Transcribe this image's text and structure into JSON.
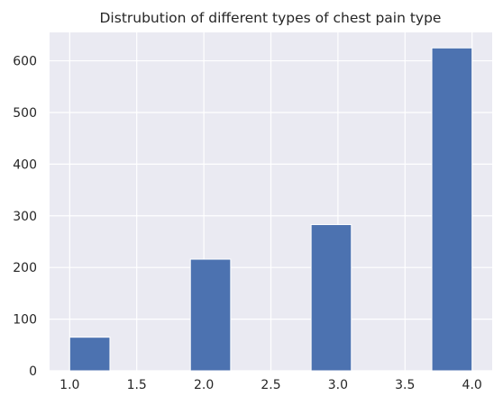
{
  "chart_data": {
    "type": "bar",
    "title": "Distrubution of different types of chest pain type",
    "xlabel": "",
    "ylabel": "",
    "xlim": [
      0.85,
      4.15
    ],
    "ylim": [
      0,
      655
    ],
    "x_ticks": [
      1.0,
      1.5,
      2.0,
      2.5,
      3.0,
      3.5,
      4.0
    ],
    "x_tick_labels": [
      "1.0",
      "1.5",
      "2.0",
      "2.5",
      "3.0",
      "3.5",
      "4.0"
    ],
    "y_ticks": [
      0,
      100,
      200,
      300,
      400,
      500,
      600
    ],
    "y_tick_labels": [
      "0",
      "100",
      "200",
      "300",
      "400",
      "500",
      "600"
    ],
    "bars": [
      {
        "x_start": 1.0,
        "x_end": 1.3,
        "value": 65
      },
      {
        "x_start": 1.3,
        "x_end": 1.6,
        "value": 0
      },
      {
        "x_start": 1.6,
        "x_end": 1.9,
        "value": 0
      },
      {
        "x_start": 1.9,
        "x_end": 2.2,
        "value": 216
      },
      {
        "x_start": 2.2,
        "x_end": 2.5,
        "value": 0
      },
      {
        "x_start": 2.5,
        "x_end": 2.8,
        "value": 0
      },
      {
        "x_start": 2.8,
        "x_end": 3.1,
        "value": 283
      },
      {
        "x_start": 3.1,
        "x_end": 3.4,
        "value": 0
      },
      {
        "x_start": 3.4,
        "x_end": 3.7,
        "value": 0
      },
      {
        "x_start": 3.7,
        "x_end": 4.0,
        "value": 625
      }
    ],
    "grid": true,
    "colors": {
      "bar": "#4c72b0",
      "plot_background": "#eaeaf2",
      "grid": "#ffffff",
      "text": "#262626"
    }
  }
}
